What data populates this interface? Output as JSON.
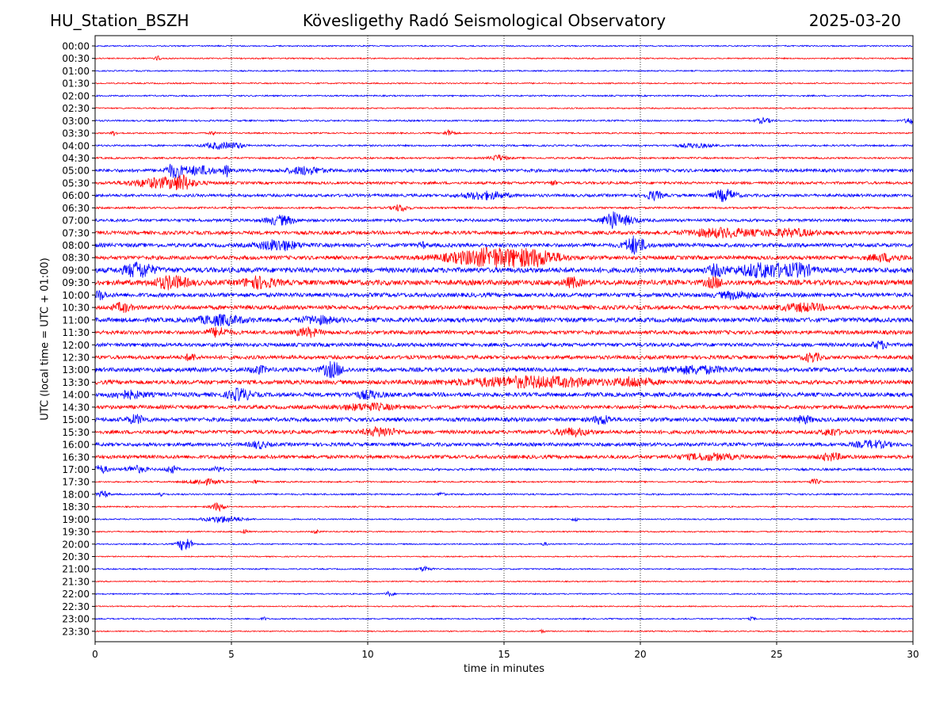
{
  "header": {
    "station": "HU_Station_BSZH",
    "title": "Kövesligethy Radó Seismological Observatory",
    "date": "2025-03-20"
  },
  "chart_data": {
    "type": "line",
    "title": "Kövesligethy Radó Seismological Observatory",
    "xlabel": "time in minutes",
    "ylabel": "UTC (local time = UTC + 01:00)",
    "xlim": [
      0,
      30
    ],
    "xticks": [
      0,
      5,
      10,
      15,
      20,
      25,
      30
    ],
    "vertical_grid_minutes": [
      5,
      10,
      15,
      20,
      25
    ],
    "colors": {
      "even_rows": "#0000ff",
      "odd_rows": "#ff0000",
      "grid": "#000000"
    },
    "rows": [
      {
        "label": "00:00",
        "noise": 0.8,
        "events": []
      },
      {
        "label": "00:30",
        "noise": 0.8,
        "events": [
          {
            "t": 2.3,
            "a": 3,
            "w": 0.1
          }
        ]
      },
      {
        "label": "01:00",
        "noise": 0.8,
        "events": []
      },
      {
        "label": "01:30",
        "noise": 0.8,
        "events": []
      },
      {
        "label": "02:00",
        "noise": 0.9,
        "events": []
      },
      {
        "label": "02:30",
        "noise": 0.8,
        "events": []
      },
      {
        "label": "03:00",
        "noise": 1.0,
        "events": [
          {
            "t": 24.5,
            "a": 3,
            "w": 0.3
          },
          {
            "t": 29.9,
            "a": 4,
            "w": 0.2
          }
        ]
      },
      {
        "label": "03:30",
        "noise": 0.9,
        "events": [
          {
            "t": 0.7,
            "a": 3,
            "w": 0.1
          },
          {
            "t": 4.3,
            "a": 2.5,
            "w": 0.1
          },
          {
            "t": 13.0,
            "a": 3.5,
            "w": 0.2
          }
        ]
      },
      {
        "label": "04:00",
        "noise": 1.1,
        "events": [
          {
            "t": 4.5,
            "a": 4,
            "w": 0.5
          },
          {
            "t": 5.2,
            "a": 3,
            "w": 0.3
          },
          {
            "t": 22.0,
            "a": 2.5,
            "w": 0.6
          }
        ]
      },
      {
        "label": "04:30",
        "noise": 1.1,
        "events": [
          {
            "t": 14.8,
            "a": 3.5,
            "w": 0.3
          }
        ]
      },
      {
        "label": "05:00",
        "noise": 2.0,
        "events": [
          {
            "t": 2.9,
            "a": 8,
            "w": 0.3
          },
          {
            "t": 3.8,
            "a": 5,
            "w": 0.6
          },
          {
            "t": 4.8,
            "a": 8,
            "w": 0.1
          },
          {
            "t": 7.7,
            "a": 4.5,
            "w": 0.6
          }
        ]
      },
      {
        "label": "05:30",
        "noise": 1.6,
        "events": [
          {
            "t": 2.5,
            "a": 6,
            "w": 1.2
          },
          {
            "t": 3.2,
            "a": 6,
            "w": 0.3
          },
          {
            "t": 16.8,
            "a": 3,
            "w": 0.1
          }
        ]
      },
      {
        "label": "06:00",
        "noise": 1.8,
        "events": [
          {
            "t": 14.3,
            "a": 4.5,
            "w": 0.8
          },
          {
            "t": 20.5,
            "a": 5,
            "w": 0.3
          },
          {
            "t": 23.1,
            "a": 7,
            "w": 0.4
          }
        ]
      },
      {
        "label": "06:30",
        "noise": 1.2,
        "events": [
          {
            "t": 11.2,
            "a": 4,
            "w": 0.3
          }
        ]
      },
      {
        "label": "07:00",
        "noise": 1.8,
        "events": [
          {
            "t": 6.8,
            "a": 5.5,
            "w": 0.5
          },
          {
            "t": 18.9,
            "a": 10,
            "w": 0.25
          },
          {
            "t": 19.4,
            "a": 5,
            "w": 0.5
          }
        ]
      },
      {
        "label": "07:30",
        "noise": 2.2,
        "events": [
          {
            "t": 23.0,
            "a": 5,
            "w": 1.2
          },
          {
            "t": 25.5,
            "a": 4,
            "w": 1.0
          }
        ]
      },
      {
        "label": "08:00",
        "noise": 2.4,
        "events": [
          {
            "t": 6.7,
            "a": 6,
            "w": 0.7
          },
          {
            "t": 19.8,
            "a": 11,
            "w": 0.35
          },
          {
            "t": 12.0,
            "a": 3.5,
            "w": 0.1
          }
        ]
      },
      {
        "label": "08:30",
        "noise": 2.4,
        "events": [
          {
            "t": 14.6,
            "a": 11,
            "w": 1.6
          },
          {
            "t": 16.3,
            "a": 6,
            "w": 0.8
          },
          {
            "t": 29.0,
            "a": 4,
            "w": 0.6
          }
        ]
      },
      {
        "label": "09:00",
        "noise": 3.2,
        "events": [
          {
            "t": 1.6,
            "a": 9,
            "w": 0.5
          },
          {
            "t": 24.6,
            "a": 8,
            "w": 1.0
          },
          {
            "t": 22.8,
            "a": 6,
            "w": 0.3
          },
          {
            "t": 25.9,
            "a": 6,
            "w": 0.4
          }
        ]
      },
      {
        "label": "09:30",
        "noise": 3.2,
        "events": [
          {
            "t": 2.8,
            "a": 7,
            "w": 0.6
          },
          {
            "t": 6.0,
            "a": 6,
            "w": 0.6
          },
          {
            "t": 17.5,
            "a": 5,
            "w": 0.3
          },
          {
            "t": 22.7,
            "a": 5.5,
            "w": 0.3
          }
        ]
      },
      {
        "label": "10:00",
        "noise": 2.6,
        "events": [
          {
            "t": 0.2,
            "a": 5,
            "w": 0.2
          },
          {
            "t": 23.5,
            "a": 4,
            "w": 0.6
          }
        ]
      },
      {
        "label": "10:30",
        "noise": 2.6,
        "events": [
          {
            "t": 1.0,
            "a": 5,
            "w": 0.3
          },
          {
            "t": 26.0,
            "a": 4,
            "w": 0.8
          }
        ]
      },
      {
        "label": "11:00",
        "noise": 2.8,
        "events": [
          {
            "t": 4.6,
            "a": 5.5,
            "w": 0.8
          },
          {
            "t": 8.2,
            "a": 4,
            "w": 0.6
          }
        ]
      },
      {
        "label": "11:30",
        "noise": 2.4,
        "events": [
          {
            "t": 4.5,
            "a": 5,
            "w": 0.4
          },
          {
            "t": 7.8,
            "a": 5,
            "w": 0.4
          }
        ]
      },
      {
        "label": "12:00",
        "noise": 2.3,
        "events": [
          {
            "t": 28.8,
            "a": 4,
            "w": 0.3
          }
        ]
      },
      {
        "label": "12:30",
        "noise": 2.3,
        "events": [
          {
            "t": 3.5,
            "a": 4,
            "w": 0.2
          },
          {
            "t": 26.3,
            "a": 5,
            "w": 0.3
          }
        ]
      },
      {
        "label": "13:00",
        "noise": 2.6,
        "events": [
          {
            "t": 8.7,
            "a": 9,
            "w": 0.35
          },
          {
            "t": 6.0,
            "a": 4,
            "w": 0.3
          },
          {
            "t": 22.0,
            "a": 4,
            "w": 1.2
          }
        ]
      },
      {
        "label": "13:30",
        "noise": 2.6,
        "events": [
          {
            "t": 16.0,
            "a": 6,
            "w": 2.5
          },
          {
            "t": 19.8,
            "a": 5,
            "w": 0.6
          }
        ]
      },
      {
        "label": "14:00",
        "noise": 2.6,
        "events": [
          {
            "t": 5.3,
            "a": 7,
            "w": 0.4
          },
          {
            "t": 1.2,
            "a": 4,
            "w": 0.6
          },
          {
            "t": 10.0,
            "a": 4,
            "w": 0.5
          }
        ]
      },
      {
        "label": "14:30",
        "noise": 2.3,
        "events": [
          {
            "t": 10.0,
            "a": 3.5,
            "w": 1.0
          }
        ]
      },
      {
        "label": "15:00",
        "noise": 2.5,
        "events": [
          {
            "t": 1.5,
            "a": 5,
            "w": 0.3
          },
          {
            "t": 18.6,
            "a": 5,
            "w": 0.3
          },
          {
            "t": 26.0,
            "a": 4,
            "w": 0.3
          }
        ]
      },
      {
        "label": "15:30",
        "noise": 2.3,
        "events": [
          {
            "t": 10.5,
            "a": 5,
            "w": 0.6
          },
          {
            "t": 17.5,
            "a": 4,
            "w": 0.6
          },
          {
            "t": 27.0,
            "a": 4,
            "w": 0.3
          }
        ]
      },
      {
        "label": "16:00",
        "noise": 2.2,
        "events": [
          {
            "t": 6.0,
            "a": 4,
            "w": 0.3
          },
          {
            "t": 28.5,
            "a": 4,
            "w": 0.6
          }
        ]
      },
      {
        "label": "16:30",
        "noise": 2.2,
        "events": [
          {
            "t": 22.5,
            "a": 3.5,
            "w": 1.0
          },
          {
            "t": 27.0,
            "a": 4,
            "w": 0.4
          }
        ]
      },
      {
        "label": "17:00",
        "noise": 1.4,
        "events": [
          {
            "t": 0.2,
            "a": 4.5,
            "w": 0.3
          },
          {
            "t": 1.5,
            "a": 4,
            "w": 0.4
          },
          {
            "t": 2.8,
            "a": 4.5,
            "w": 0.2
          },
          {
            "t": 4.5,
            "a": 3,
            "w": 0.2
          }
        ]
      },
      {
        "label": "17:30",
        "noise": 0.9,
        "events": [
          {
            "t": 4.0,
            "a": 3.5,
            "w": 0.6
          },
          {
            "t": 5.9,
            "a": 3,
            "w": 0.1
          },
          {
            "t": 26.4,
            "a": 3,
            "w": 0.2
          }
        ]
      },
      {
        "label": "18:00",
        "noise": 1.0,
        "events": [
          {
            "t": 0.3,
            "a": 4,
            "w": 0.2
          },
          {
            "t": 2.4,
            "a": 3,
            "w": 0.1
          },
          {
            "t": 12.7,
            "a": 3,
            "w": 0.1
          }
        ]
      },
      {
        "label": "18:30",
        "noise": 0.8,
        "events": [
          {
            "t": 4.5,
            "a": 5,
            "w": 0.25
          }
        ]
      },
      {
        "label": "19:00",
        "noise": 0.8,
        "events": [
          {
            "t": 4.7,
            "a": 4,
            "w": 0.7
          },
          {
            "t": 17.6,
            "a": 2.5,
            "w": 0.1
          }
        ]
      },
      {
        "label": "19:30",
        "noise": 0.8,
        "events": [
          {
            "t": 5.5,
            "a": 3,
            "w": 0.1
          },
          {
            "t": 8.1,
            "a": 3,
            "w": 0.1
          }
        ]
      },
      {
        "label": "20:00",
        "noise": 0.8,
        "events": [
          {
            "t": 3.3,
            "a": 9,
            "w": 0.25
          },
          {
            "t": 16.5,
            "a": 2,
            "w": 0.1
          }
        ]
      },
      {
        "label": "20:30",
        "noise": 0.7,
        "events": []
      },
      {
        "label": "21:00",
        "noise": 0.8,
        "events": [
          {
            "t": 12.1,
            "a": 3.5,
            "w": 0.2
          }
        ]
      },
      {
        "label": "21:30",
        "noise": 0.7,
        "events": []
      },
      {
        "label": "22:00",
        "noise": 0.8,
        "events": [
          {
            "t": 10.8,
            "a": 3,
            "w": 0.15
          }
        ]
      },
      {
        "label": "22:30",
        "noise": 0.7,
        "events": []
      },
      {
        "label": "23:00",
        "noise": 0.8,
        "events": [
          {
            "t": 6.2,
            "a": 2,
            "w": 0.1
          },
          {
            "t": 24.1,
            "a": 2,
            "w": 0.1
          }
        ]
      },
      {
        "label": "23:30",
        "noise": 0.7,
        "events": [
          {
            "t": 16.4,
            "a": 2,
            "w": 0.1
          }
        ]
      }
    ]
  }
}
